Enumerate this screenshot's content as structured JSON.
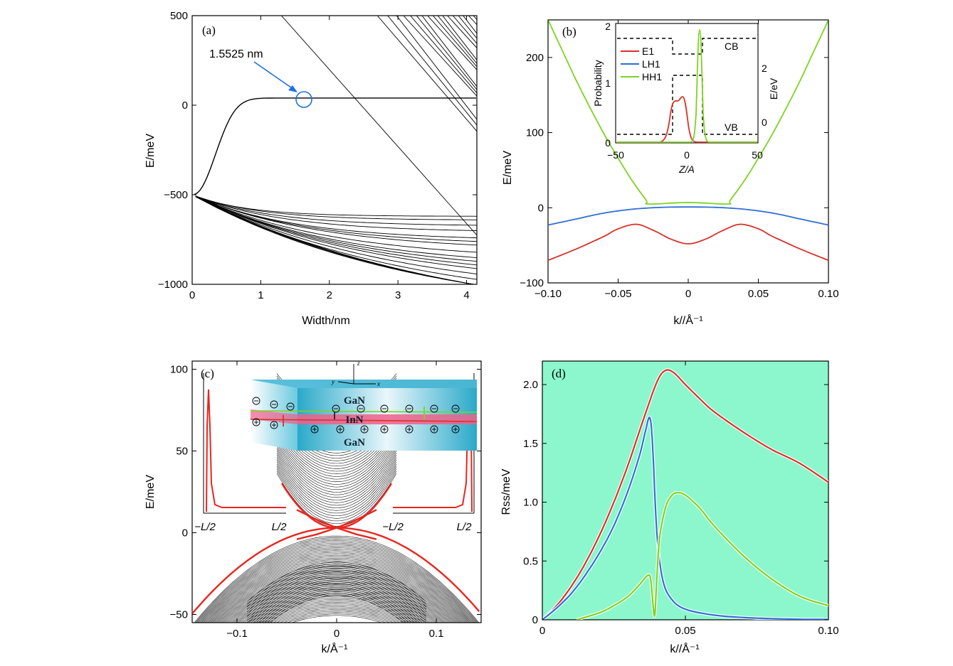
{
  "chart_data": [
    {
      "id": "a",
      "type": "line",
      "panel_label": "(a)",
      "xlabel": "Width/nm",
      "ylabel": "E/meV",
      "xlim": [
        0,
        4.15
      ],
      "ylim": [
        -1000,
        500
      ],
      "xticks": [
        "0",
        "1",
        "2",
        "3",
        "4"
      ],
      "yticks": [
        "500",
        "0",
        "−500",
        "−1000"
      ],
      "grid": false,
      "annotation": {
        "text": "1.5525 nm",
        "x": 1.6,
        "y": 40
      },
      "series_description": "subband energies versus width",
      "colors": {
        "line": "#000000",
        "annotation": "#1f6fe0"
      }
    },
    {
      "id": "b",
      "type": "line",
      "panel_label": "(b)",
      "xlabel": "k//Å⁻¹",
      "ylabel": "E/meV",
      "xlim": [
        -0.1,
        0.1
      ],
      "ylim": [
        -100,
        250
      ],
      "xticks": [
        "−0.10",
        "−0.05",
        "0",
        "0.05",
        "0.10"
      ],
      "yticks": [
        "200",
        "100",
        "0",
        "−100"
      ],
      "series": [
        {
          "name": "HH1",
          "color": "#7ed321",
          "x": [
            -0.1,
            -0.09,
            -0.08,
            -0.07,
            -0.06,
            -0.05,
            -0.04,
            -0.03,
            -0.028,
            0,
            0.028,
            0.03,
            0.04,
            0.05,
            0.06,
            0.07,
            0.08,
            0.09,
            0.1
          ],
          "y": [
            250,
            210,
            170,
            133,
            98,
            66,
            36,
            10,
            5,
            7,
            5,
            10,
            36,
            66,
            98,
            133,
            170,
            210,
            250
          ]
        },
        {
          "name": "LH1",
          "color": "#2f6fd6",
          "x": [
            -0.1,
            -0.08,
            -0.06,
            -0.04,
            -0.02,
            0,
            0.02,
            0.04,
            0.06,
            0.08,
            0.1
          ],
          "y": [
            -23,
            -15,
            -7,
            -2,
            0.5,
            1,
            0.5,
            -2,
            -7,
            -15,
            -23
          ]
        },
        {
          "name": "E1",
          "color": "#d9322b",
          "x": [
            -0.1,
            -0.08,
            -0.06,
            -0.05,
            -0.037,
            -0.025,
            -0.012,
            0,
            0.012,
            0.025,
            0.037,
            0.05,
            0.06,
            0.08,
            0.1
          ],
          "y": [
            -70,
            -55,
            -38,
            -28,
            -22,
            -30,
            -42,
            -48,
            -42,
            -30,
            -22,
            -28,
            -38,
            -55,
            -70
          ]
        }
      ],
      "inset": {
        "xlabel": "Z/A",
        "ylabel_left": "Probability",
        "ylabel_right": "E/eV",
        "xlim": [
          -50,
          50
        ],
        "xticks": [
          "−50",
          "0",
          "50"
        ],
        "yticks_left": [
          "0",
          "1",
          "2"
        ],
        "yticks_right": [
          "0",
          "2"
        ],
        "legend": [
          "E1",
          "LH1",
          "HH1"
        ],
        "band_labels": {
          "cb": "CB",
          "vb": "VB"
        }
      }
    },
    {
      "id": "c",
      "type": "line",
      "panel_label": "(c)",
      "xlabel": "k/Å⁻¹",
      "ylabel": "E/meV",
      "xlim": [
        -0.145,
        0.145
      ],
      "ylim": [
        -55,
        105
      ],
      "xticks": [
        "−0.1",
        "0",
        "0.1"
      ],
      "yticks": [
        "100",
        "50",
        "0",
        "−50"
      ],
      "edge_state_color": "#e8261f",
      "bulk_color": "#000000",
      "inset_left": {
        "xticks": [
          "−L/2",
          "L/2"
        ]
      },
      "inset_right": {
        "xticks": [
          "−L/2",
          "L/2"
        ]
      },
      "schematic": {
        "layers": [
          "GaN",
          "InN",
          "GaN"
        ],
        "axes": {
          "x": "x",
          "y": "y",
          "z": "z"
        }
      }
    },
    {
      "id": "d",
      "type": "line",
      "panel_label": "(d)",
      "xlabel": "k//Å⁻¹",
      "ylabel": "Rss/meV",
      "xlim": [
        0,
        0.1
      ],
      "ylim": [
        0,
        2.2
      ],
      "xticks": [
        "0",
        "0.05",
        "0.10"
      ],
      "yticks": [
        "2.0",
        "1.5",
        "1.0",
        "0.5",
        "0"
      ],
      "background": "#8cf7cc",
      "series": [
        {
          "color": "#d9322b",
          "x": [
            0,
            0.005,
            0.01,
            0.015,
            0.02,
            0.025,
            0.03,
            0.035,
            0.04,
            0.043,
            0.046,
            0.05,
            0.055,
            0.06,
            0.07,
            0.08,
            0.09,
            0.1
          ],
          "y": [
            0,
            0.12,
            0.28,
            0.48,
            0.72,
            1.0,
            1.32,
            1.68,
            2.02,
            2.12,
            2.1,
            2.0,
            1.88,
            1.77,
            1.6,
            1.45,
            1.33,
            1.17
          ]
        },
        {
          "color": "#2f6fd6",
          "x": [
            0,
            0.005,
            0.01,
            0.015,
            0.02,
            0.025,
            0.03,
            0.034,
            0.036,
            0.0375,
            0.0385,
            0.04,
            0.042,
            0.045,
            0.05,
            0.06,
            0.07,
            0.08,
            0.09,
            0.1
          ],
          "y": [
            0,
            0.1,
            0.22,
            0.38,
            0.57,
            0.8,
            1.1,
            1.4,
            1.6,
            1.72,
            1.5,
            0.75,
            0.35,
            0.18,
            0.09,
            0.04,
            0.02,
            0.01,
            0.005,
            0.003
          ]
        },
        {
          "color": "#7ed321",
          "x": [
            0.012,
            0.02,
            0.025,
            0.03,
            0.034,
            0.037,
            0.038,
            0.0392,
            0.04,
            0.041,
            0.043,
            0.045,
            0.047,
            0.05,
            0.055,
            0.06,
            0.07,
            0.08,
            0.09,
            0.1
          ],
          "y": [
            0,
            0.06,
            0.12,
            0.2,
            0.3,
            0.38,
            0.32,
            0.03,
            0.35,
            0.7,
            0.95,
            1.05,
            1.08,
            1.06,
            0.95,
            0.8,
            0.55,
            0.35,
            0.2,
            0.12
          ]
        }
      ]
    }
  ]
}
